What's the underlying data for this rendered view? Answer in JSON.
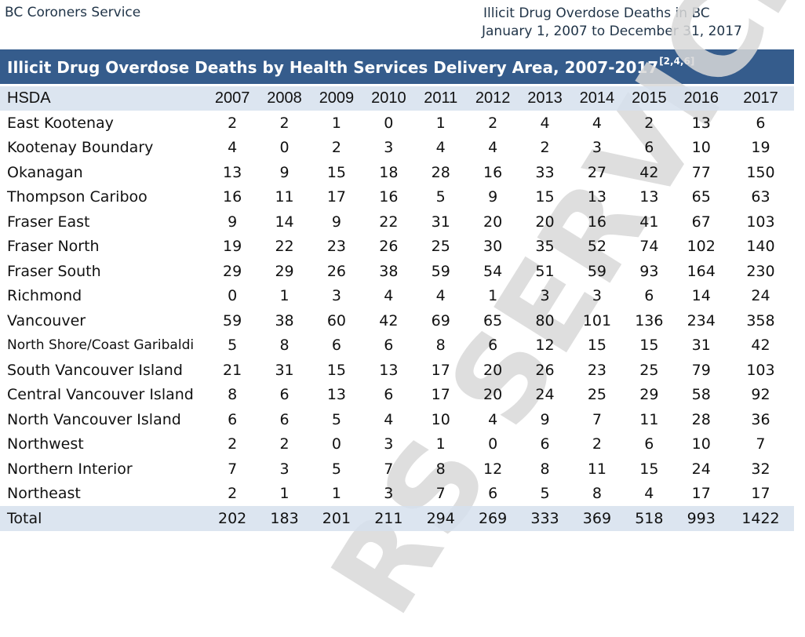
{
  "header": {
    "organization": "BC Coroners Service",
    "report_title_line1": "Illicit Drug Overdose Deaths in BC",
    "report_title_line2": "January 1, 2007 to December 31, 2017"
  },
  "banner": {
    "title": "Illicit Drug Overdose Deaths by Health Services Delivery Area, 2007-2017",
    "footnote_refs": "[2,4,6]"
  },
  "watermark": "RS SERVICE",
  "table": {
    "columns": [
      "HSDA",
      "2007",
      "2008",
      "2009",
      "2010",
      "2011",
      "2012",
      "2013",
      "2014",
      "2015",
      "2016",
      "2017"
    ],
    "rows": [
      {
        "name": "East Kootenay",
        "values": [
          "2",
          "2",
          "1",
          "0",
          "1",
          "2",
          "4",
          "4",
          "2",
          "13",
          "6"
        ]
      },
      {
        "name": "Kootenay Boundary",
        "values": [
          "4",
          "0",
          "2",
          "3",
          "4",
          "4",
          "2",
          "3",
          "6",
          "10",
          "19"
        ]
      },
      {
        "name": "Okanagan",
        "values": [
          "13",
          "9",
          "15",
          "18",
          "28",
          "16",
          "33",
          "27",
          "42",
          "77",
          "150"
        ]
      },
      {
        "name": "Thompson Cariboo",
        "values": [
          "16",
          "11",
          "17",
          "16",
          "5",
          "9",
          "15",
          "13",
          "13",
          "65",
          "63"
        ]
      },
      {
        "name": "Fraser East",
        "values": [
          "9",
          "14",
          "9",
          "22",
          "31",
          "20",
          "20",
          "16",
          "41",
          "67",
          "103"
        ]
      },
      {
        "name": "Fraser North",
        "values": [
          "19",
          "22",
          "23",
          "26",
          "25",
          "30",
          "35",
          "52",
          "74",
          "102",
          "140"
        ]
      },
      {
        "name": "Fraser South",
        "values": [
          "29",
          "29",
          "26",
          "38",
          "59",
          "54",
          "51",
          "59",
          "93",
          "164",
          "230"
        ]
      },
      {
        "name": "Richmond",
        "values": [
          "0",
          "1",
          "3",
          "4",
          "4",
          "1",
          "3",
          "3",
          "6",
          "14",
          "24"
        ]
      },
      {
        "name": "Vancouver",
        "values": [
          "59",
          "38",
          "60",
          "42",
          "69",
          "65",
          "80",
          "101",
          "136",
          "234",
          "358"
        ]
      },
      {
        "name": "North Shore/Coast Garibaldi",
        "values": [
          "5",
          "8",
          "6",
          "6",
          "8",
          "6",
          "12",
          "15",
          "15",
          "31",
          "42"
        ]
      },
      {
        "name": "South Vancouver Island",
        "values": [
          "21",
          "31",
          "15",
          "13",
          "17",
          "20",
          "26",
          "23",
          "25",
          "79",
          "103"
        ]
      },
      {
        "name": "Central Vancouver Island",
        "values": [
          "8",
          "6",
          "13",
          "6",
          "17",
          "20",
          "24",
          "25",
          "29",
          "58",
          "92"
        ]
      },
      {
        "name": "North Vancouver Island",
        "values": [
          "6",
          "6",
          "5",
          "4",
          "10",
          "4",
          "9",
          "7",
          "11",
          "28",
          "36"
        ]
      },
      {
        "name": "Northwest",
        "values": [
          "2",
          "2",
          "0",
          "3",
          "1",
          "0",
          "6",
          "2",
          "6",
          "10",
          "7"
        ]
      },
      {
        "name": "Northern Interior",
        "values": [
          "7",
          "3",
          "5",
          "7",
          "8",
          "12",
          "8",
          "11",
          "15",
          "24",
          "32"
        ]
      },
      {
        "name": "Northeast",
        "values": [
          "2",
          "1",
          "1",
          "3",
          "7",
          "6",
          "5",
          "8",
          "4",
          "17",
          "17"
        ]
      }
    ],
    "total": {
      "name": "Total",
      "values": [
        "202",
        "183",
        "201",
        "211",
        "294",
        "269",
        "333",
        "369",
        "518",
        "993",
        "1422"
      ]
    }
  },
  "colors": {
    "banner_bg": "#355c8c",
    "header_row_bg": "#d6e1ed",
    "text": "#111111"
  }
}
